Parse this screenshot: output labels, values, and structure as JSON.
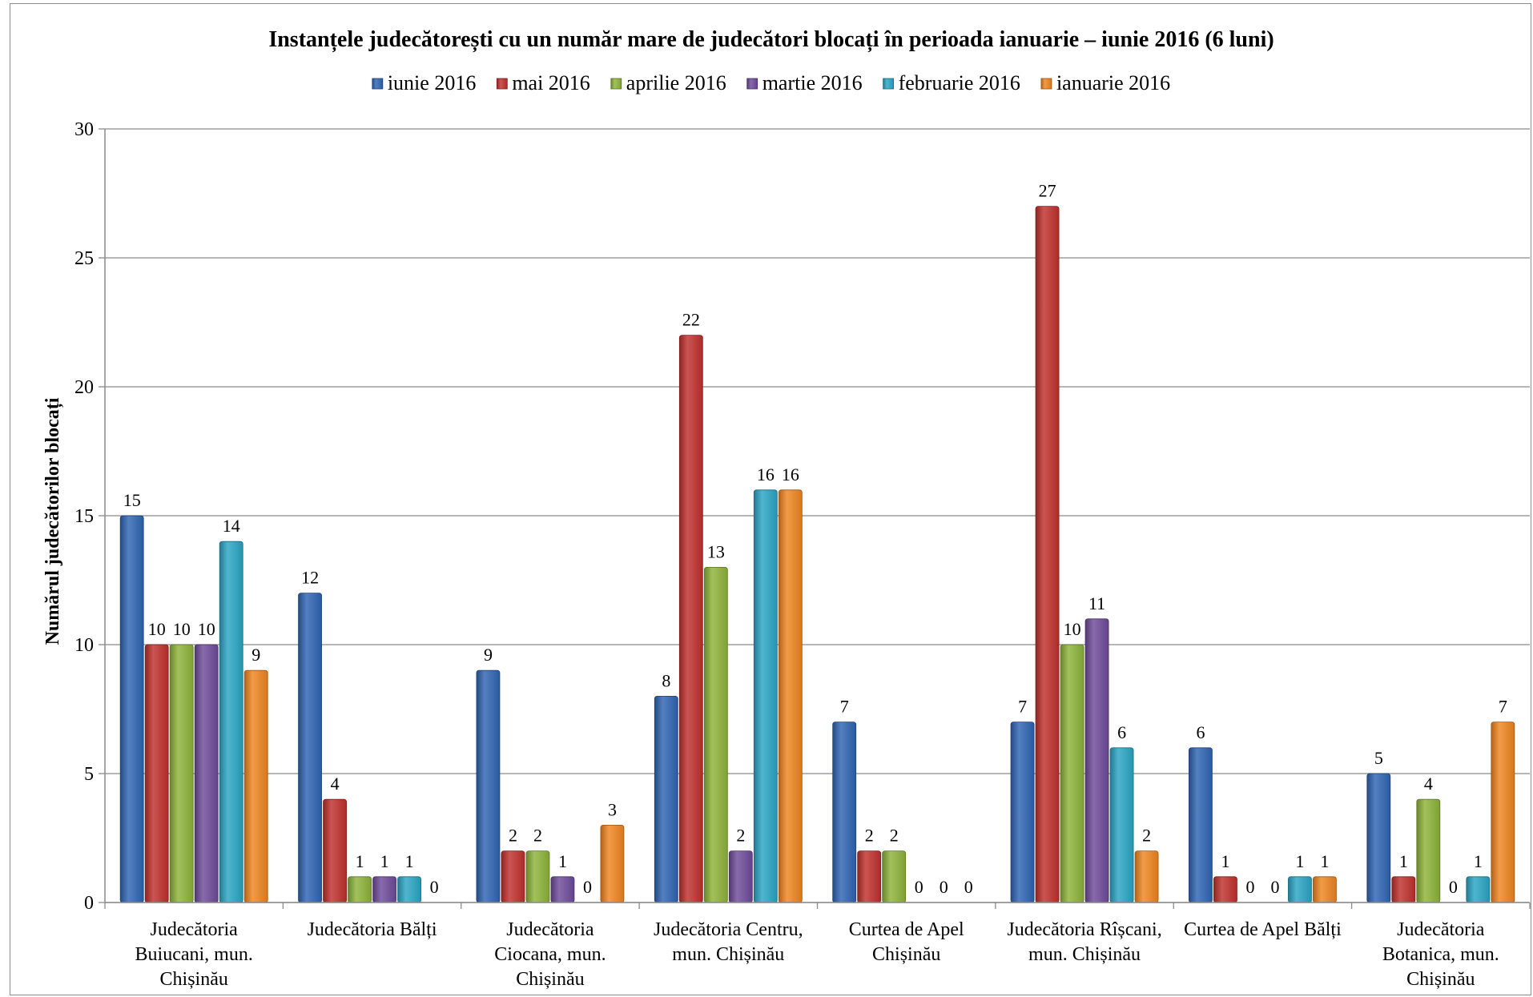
{
  "chart_data": {
    "type": "bar",
    "title": "Instanțele judecătorești cu un număr  mare de judecători blocați în perioada ianuarie  – iunie  2016 (6 luni)",
    "ylabel": "Numărul  judecătorilor  blocați",
    "xlabel": "",
    "ylim": [
      0,
      30
    ],
    "yticks": [
      0,
      5,
      10,
      15,
      20,
      25,
      30
    ],
    "grid": true,
    "legend_position": "top",
    "categories": [
      [
        "Judecătoria",
        "Buiucani, mun.",
        "Chișinău"
      ],
      [
        "Judecătoria Bălți"
      ],
      [
        "Judecătoria",
        "Ciocana, mun.",
        "Chișinău"
      ],
      [
        "Judecătoria Centru,",
        "mun. Chișinău"
      ],
      [
        "Curtea de Apel",
        "Chișinău"
      ],
      [
        "Judecătoria Rîșcani,",
        "mun. Chișinău"
      ],
      [
        "Curtea de Apel Bălți"
      ],
      [
        "Judecătoria",
        "Botanica, mun.",
        "Chișinău"
      ]
    ],
    "series": [
      {
        "name": "iunie 2016",
        "color": "#2e64b3",
        "values": [
          15,
          12,
          9,
          8,
          7,
          7,
          6,
          5
        ]
      },
      {
        "name": "mai 2016",
        "color": "#c0302c",
        "values": [
          10,
          4,
          2,
          22,
          2,
          27,
          1,
          1
        ]
      },
      {
        "name": "aprilie 2016",
        "color": "#8db33a",
        "values": [
          10,
          1,
          2,
          13,
          2,
          10,
          0,
          4
        ]
      },
      {
        "name": "martie 2016",
        "color": "#6e4a9a",
        "values": [
          10,
          1,
          1,
          2,
          0,
          11,
          0,
          0
        ]
      },
      {
        "name": "februarie 2016",
        "color": "#2aa5c4",
        "values": [
          14,
          1,
          0,
          16,
          0,
          6,
          1,
          1
        ]
      },
      {
        "name": "ianuarie 2016",
        "color": "#ef8520",
        "values": [
          9,
          0,
          3,
          16,
          0,
          2,
          1,
          7
        ]
      }
    ]
  }
}
